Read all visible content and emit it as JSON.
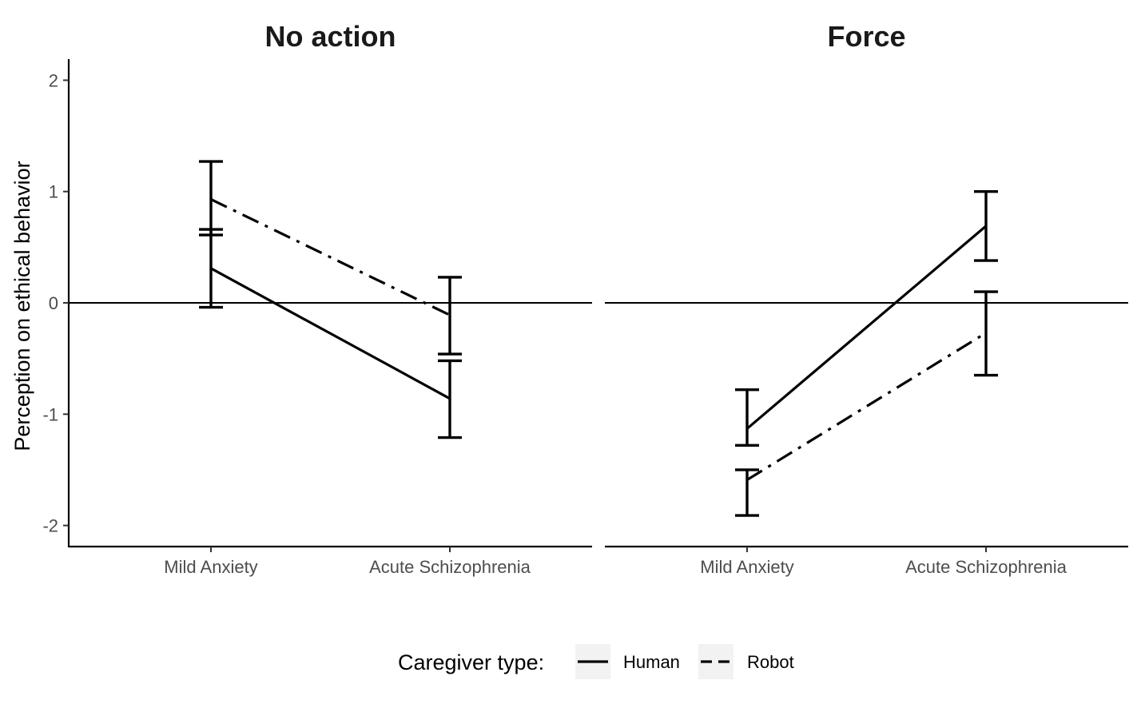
{
  "chart_data": {
    "type": "line",
    "facet_titles": [
      "No action",
      "Force"
    ],
    "categories": [
      "Mild Anxiety",
      "Acute Schizophrenia"
    ],
    "ylabel": "Perception on ethical behavior",
    "xlabel": "",
    "ylim": [
      -2.2,
      2.2
    ],
    "yticks": [
      -2,
      -1,
      0,
      1,
      2
    ],
    "reference_line_y": 0,
    "grid": false,
    "legend": {
      "title": "Caregiver type:",
      "position": "bottom",
      "entries": [
        {
          "label": "Human",
          "linetype": "solid"
        },
        {
          "label": "Robot",
          "linetype": "dashdot"
        }
      ]
    },
    "panels": [
      {
        "title": "No action",
        "series": [
          {
            "name": "Human",
            "linetype": "solid",
            "values": [
              0.31,
              -0.86
            ],
            "lower": [
              -0.04,
              -1.21
            ],
            "upper": [
              0.66,
              -0.52
            ]
          },
          {
            "name": "Robot",
            "linetype": "dashdot",
            "values": [
              0.93,
              -0.11
            ],
            "lower": [
              0.61,
              -0.46
            ],
            "upper": [
              1.27,
              0.23
            ]
          }
        ]
      },
      {
        "title": "Force",
        "series": [
          {
            "name": "Human",
            "linetype": "solid",
            "values": [
              -1.13,
              0.69
            ],
            "lower": [
              -1.28,
              0.38
            ],
            "upper": [
              -0.78,
              1.0
            ]
          },
          {
            "name": "Robot",
            "linetype": "dashdot",
            "values": [
              -1.59,
              -0.27
            ],
            "lower": [
              -1.91,
              -0.65
            ],
            "upper": [
              -1.5,
              0.1
            ]
          }
        ]
      }
    ],
    "colors": {
      "line": "#000000",
      "text": "#1a1a1a",
      "tick": "#4d4d4d",
      "legend_key_bg": "#f2f2f2"
    }
  }
}
